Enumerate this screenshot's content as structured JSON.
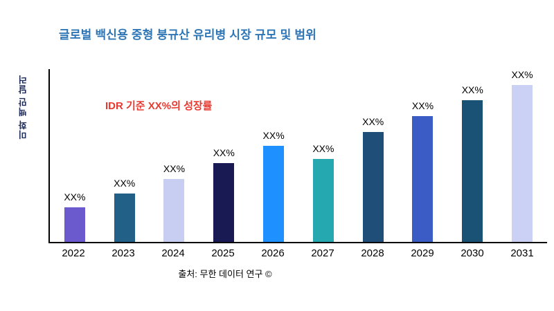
{
  "page": {
    "background": "#ffffff"
  },
  "chart_data": {
    "type": "bar",
    "title": "글로벌 백신용 중형 붕규산 유리병 시장 규모 및 범위",
    "title_color": "#2E75B6",
    "ylabel": "미화 백만 달러",
    "xlabel": "",
    "categories": [
      "2022",
      "2023",
      "2024",
      "2025",
      "2026",
      "2027",
      "2028",
      "2029",
      "2030",
      "2031"
    ],
    "values": [
      22,
      31,
      40,
      50,
      61,
      53,
      70,
      80,
      90,
      100
    ],
    "bar_labels": [
      "XX%",
      "XX%",
      "XX%",
      "XX%",
      "XX%",
      "XX%",
      "XX%",
      "XX%",
      "XX%",
      "XX%"
    ],
    "colors": [
      "#6A5ACD",
      "#236087",
      "#C8CDF2",
      "#191A53",
      "#1E90FF",
      "#25A8B0",
      "#1F4E79",
      "#3B5CC4",
      "#1A5276",
      "#CBD0F5"
    ],
    "ylim": [
      0,
      110
    ],
    "grid": false,
    "legend": false,
    "axis_color": "#000000",
    "annotation": {
      "text": "IDR 기준 XX%의 성장률",
      "color": "#E8392F"
    },
    "source": "출처: 무한 데이터 연구 ©"
  }
}
